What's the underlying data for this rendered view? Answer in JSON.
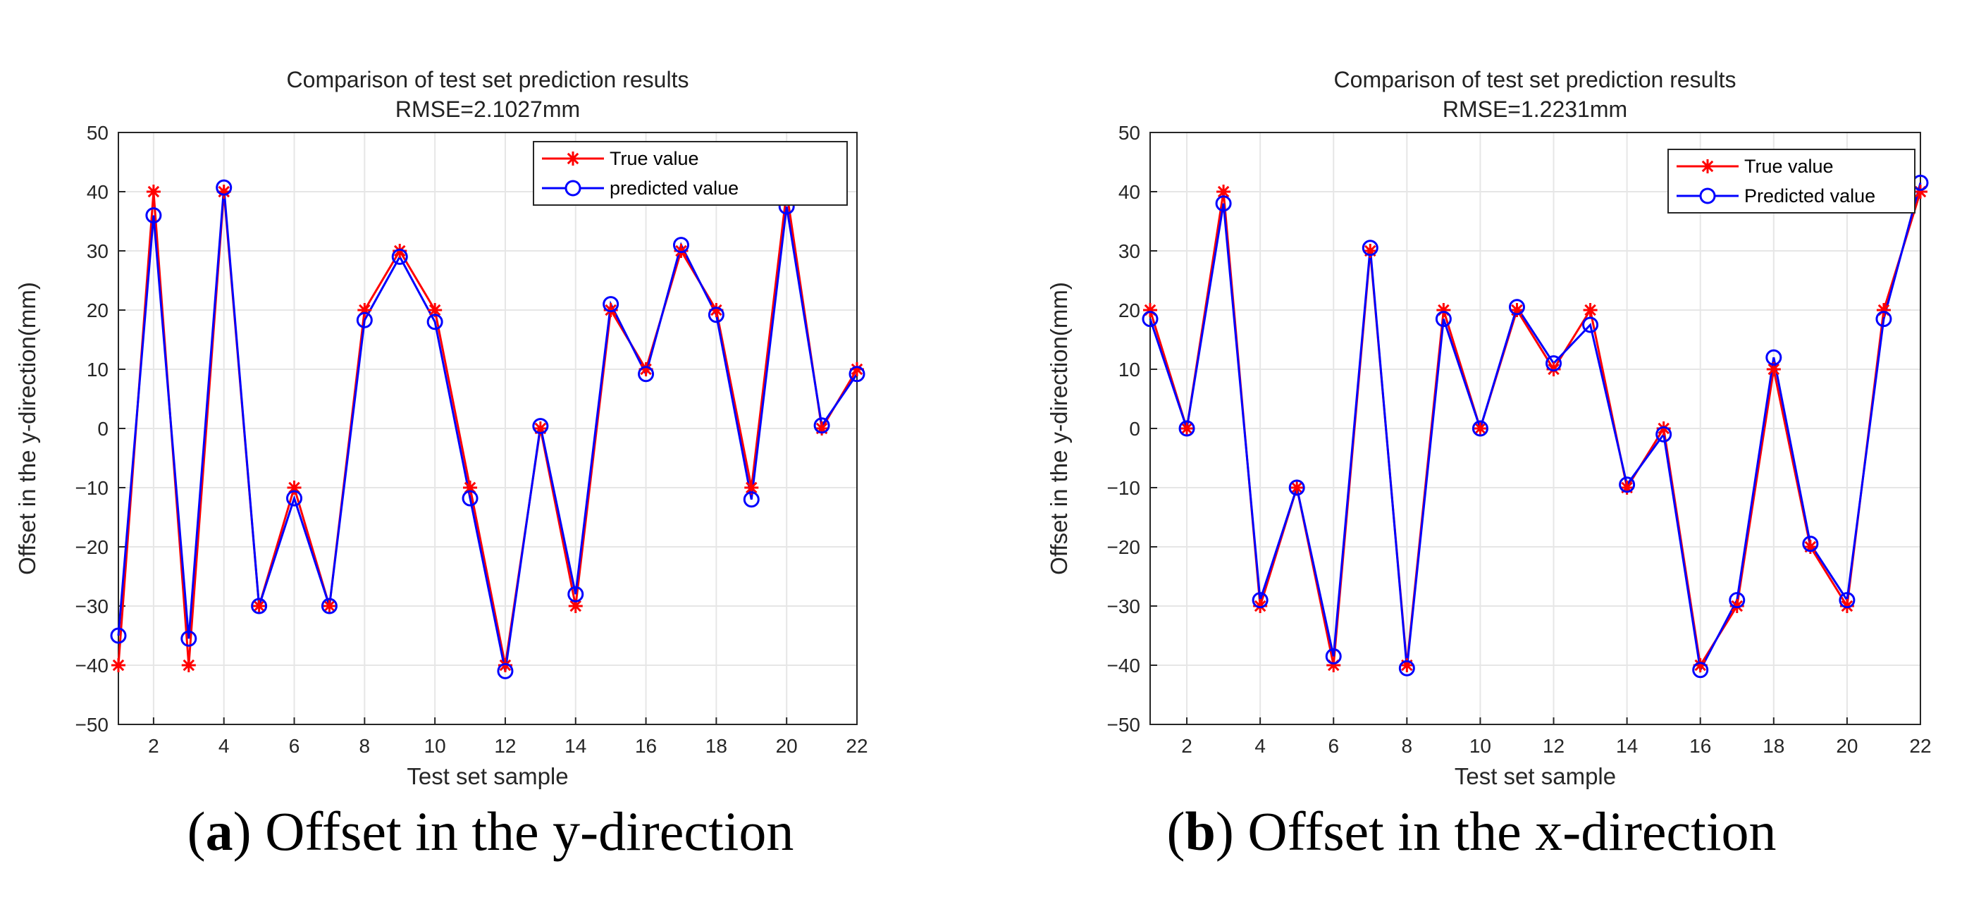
{
  "chart_data": [
    {
      "type": "line",
      "title": "Comparison of test set prediction results",
      "subtitle": "RMSE=2.1027mm",
      "xlabel": "Test set sample",
      "ylabel": "Offset in the y-direction(mm)",
      "xlim": [
        1,
        22
      ],
      "ylim": [
        -50,
        50
      ],
      "xticks": [
        2,
        4,
        6,
        8,
        10,
        12,
        14,
        16,
        18,
        20,
        22
      ],
      "yticks": [
        -50,
        -40,
        -30,
        -20,
        -10,
        0,
        10,
        20,
        30,
        40,
        50
      ],
      "grid": true,
      "legend_position": "top-right",
      "x": [
        1,
        2,
        3,
        4,
        5,
        6,
        7,
        8,
        9,
        10,
        11,
        12,
        13,
        14,
        15,
        16,
        17,
        18,
        19,
        20,
        21,
        22
      ],
      "series": [
        {
          "name": "True value",
          "color": "#ff0000",
          "marker": "asterisk",
          "values": [
            -40,
            40,
            -40,
            40,
            -30,
            -10,
            -30,
            20,
            30,
            20,
            -10,
            -40,
            0,
            -30,
            20,
            10,
            30,
            20,
            -10,
            40,
            0,
            10
          ]
        },
        {
          "name": "predicted value",
          "color": "#0000ff",
          "marker": "circle",
          "values": [
            -35,
            36,
            -35.5,
            40.7,
            -30,
            -11.8,
            -30,
            18.3,
            29,
            18,
            -11.8,
            -41,
            0.4,
            -28,
            21,
            9.2,
            31,
            19.2,
            -12,
            37.5,
            0.5,
            9.2
          ]
        }
      ],
      "caption_label": "a",
      "caption_text": "Offset in the y-direction"
    },
    {
      "type": "line",
      "title": "Comparison of test set prediction results",
      "subtitle": "RMSE=1.2231mm",
      "xlabel": "Test set sample",
      "ylabel": "Offset in the y-direction(mm)",
      "xlim": [
        1,
        22
      ],
      "ylim": [
        -50,
        50
      ],
      "xticks": [
        2,
        4,
        6,
        8,
        10,
        12,
        14,
        16,
        18,
        20,
        22
      ],
      "yticks": [
        -50,
        -40,
        -30,
        -20,
        -10,
        0,
        10,
        20,
        30,
        40,
        50
      ],
      "grid": true,
      "legend_position": "top-right",
      "x": [
        1,
        2,
        3,
        4,
        5,
        6,
        7,
        8,
        9,
        10,
        11,
        12,
        13,
        14,
        15,
        16,
        17,
        18,
        19,
        20,
        21,
        22
      ],
      "series": [
        {
          "name": "True value",
          "color": "#ff0000",
          "marker": "asterisk",
          "values": [
            20,
            0,
            40,
            -30,
            -10,
            -40,
            30,
            -40,
            20,
            0,
            20,
            10,
            20,
            -10,
            0,
            -40,
            -30,
            10,
            -20,
            -30,
            20,
            40
          ]
        },
        {
          "name": "Predicted value",
          "color": "#0000ff",
          "marker": "circle",
          "values": [
            18.5,
            0,
            38,
            -29,
            -10,
            -38.5,
            30.5,
            -40.5,
            18.5,
            0,
            20.5,
            11,
            17.5,
            -9.5,
            -1,
            -40.8,
            -29,
            12,
            -19.5,
            -29,
            18.5,
            41.5
          ]
        }
      ],
      "caption_label": "b",
      "caption_text": "Offset in the x-direction"
    }
  ]
}
